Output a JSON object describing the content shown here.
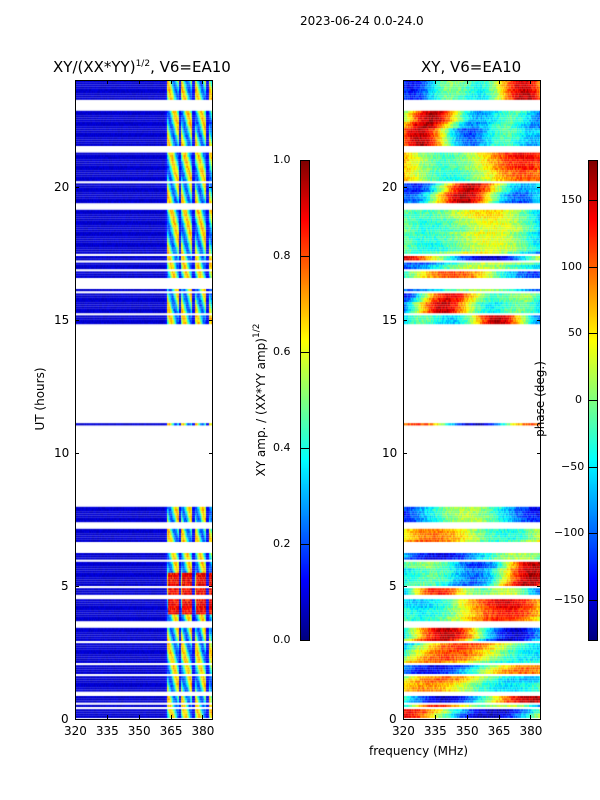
{
  "suptitle": "2023-06-24 0.0-24.0",
  "xlabel": "frequency (MHz)",
  "chart_data": [
    {
      "type": "heatmap",
      "title_main": "XY/(XX*YY)",
      "title_sup": "1/2",
      "title_suffix": ", V6=EA10",
      "xlabel": "frequency (MHz)",
      "ylabel": "UT (hours)",
      "xlim": [
        320,
        384.5
      ],
      "ylim": [
        0,
        24
      ],
      "xticks": [
        "320",
        "335",
        "350",
        "365",
        "380"
      ],
      "yticks": [
        "0",
        "5",
        "10",
        "15",
        "20"
      ],
      "colorbar": {
        "label_main": "XY amp. / (XX*YY amp)",
        "label_sup": "1/2",
        "range": [
          0,
          1
        ],
        "ticks": [
          "0.0",
          "0.2",
          "0.4",
          "0.6",
          "0.8",
          "1.0"
        ],
        "colormap": "jet"
      },
      "data_intervals_hours": [
        [
          0.1,
          8.0
        ],
        [
          11.05,
          11.15
        ],
        [
          14.9,
          24.0
        ]
      ],
      "notes_values": {
        "low_band_level": 0.08,
        "high_band_range_mhz": [
          362,
          384
        ],
        "high_band_level": 0.55
      }
    },
    {
      "type": "heatmap",
      "title_main": "XY, V6=EA10",
      "xlabel": "frequency (MHz)",
      "ylabel": "",
      "xlim": [
        320,
        384.5
      ],
      "ylim": [
        0,
        24
      ],
      "xticks": [
        "320",
        "335",
        "350",
        "365",
        "380"
      ],
      "yticks": [
        "0",
        "5",
        "10",
        "15",
        "20"
      ],
      "colorbar": {
        "label_main": "phase (deg.)",
        "range": [
          -180,
          180
        ],
        "ticks": [
          "-150",
          "-100",
          "-50",
          "0",
          "50",
          "100",
          "150"
        ],
        "colormap": "jet"
      },
      "data_intervals_hours": [
        [
          0.1,
          8.0
        ],
        [
          11.05,
          11.15
        ],
        [
          14.9,
          24.0
        ]
      ]
    }
  ],
  "gaps_hours": [
    [
      6.25,
      6.7
    ],
    [
      16.2,
      16.6
    ],
    [
      19.2,
      19.45
    ],
    [
      21.3,
      21.6
    ],
    [
      22.9,
      23.3
    ],
    [
      0.9,
      1.1
    ],
    [
      3.5,
      3.7
    ],
    [
      4.5,
      4.6
    ],
    [
      7.2,
      7.4
    ]
  ]
}
